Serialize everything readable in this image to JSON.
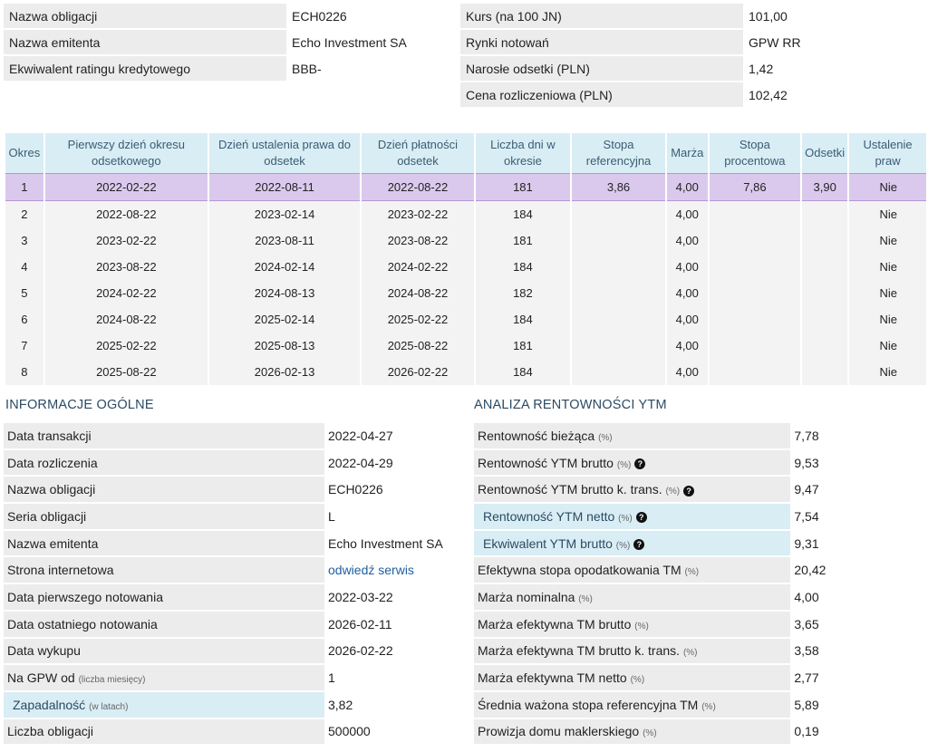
{
  "summary_left": [
    {
      "key": "Nazwa obligacji",
      "value": "ECH0226"
    },
    {
      "key": "Nazwa emitenta",
      "value": "Echo Investment SA"
    },
    {
      "key": "Ekwiwalent ratingu kredytowego",
      "value": "BBB-"
    }
  ],
  "summary_right": [
    {
      "key": "Kurs (na 100 JN)",
      "value": "101,00"
    },
    {
      "key": "Rynki notowań",
      "value": "GPW RR"
    },
    {
      "key": "Narosłe odsetki (PLN)",
      "value": "1,42"
    },
    {
      "key": "Cena rozliczeniowa (PLN)",
      "value": "102,42"
    }
  ],
  "periods": {
    "headers": [
      "Okres",
      "Pierwszy dzień okresu odsetkowego",
      "Dzień ustalenia prawa do odsetek",
      "Dzień płatności odsetek",
      "Liczba dni w okresie",
      "Stopa referencyjna",
      "Marża",
      "Stopa procentowa",
      "Odsetki",
      "Ustalenie praw"
    ],
    "rows": [
      [
        "1",
        "2022-02-22",
        "2022-08-11",
        "2022-08-22",
        "181",
        "3,86",
        "4,00",
        "7,86",
        "3,90",
        "Nie"
      ],
      [
        "2",
        "2022-08-22",
        "2023-02-14",
        "2023-02-22",
        "184",
        "",
        "4,00",
        "",
        "",
        "Nie"
      ],
      [
        "3",
        "2023-02-22",
        "2023-08-11",
        "2023-08-22",
        "181",
        "",
        "4,00",
        "",
        "",
        "Nie"
      ],
      [
        "4",
        "2023-08-22",
        "2024-02-14",
        "2024-02-22",
        "184",
        "",
        "4,00",
        "",
        "",
        "Nie"
      ],
      [
        "5",
        "2024-02-22",
        "2024-08-13",
        "2024-08-22",
        "182",
        "",
        "4,00",
        "",
        "",
        "Nie"
      ],
      [
        "6",
        "2024-08-22",
        "2025-02-14",
        "2025-02-22",
        "184",
        "",
        "4,00",
        "",
        "",
        "Nie"
      ],
      [
        "7",
        "2025-02-22",
        "2025-08-13",
        "2025-08-22",
        "181",
        "",
        "4,00",
        "",
        "",
        "Nie"
      ],
      [
        "8",
        "2025-08-22",
        "2026-02-13",
        "2026-02-22",
        "184",
        "",
        "4,00",
        "",
        "",
        "Nie"
      ]
    ]
  },
  "info": {
    "title": "INFORMACJE OGÓLNE",
    "rows": [
      {
        "key": "Data transakcji",
        "note": "",
        "value": "2022-04-27"
      },
      {
        "key": "Data rozliczenia",
        "note": "",
        "value": "2022-04-29"
      },
      {
        "key": "Nazwa obligacji",
        "note": "",
        "value": "ECH0226"
      },
      {
        "key": "Seria obligacji",
        "note": "",
        "value": "L"
      },
      {
        "key": "Nazwa emitenta",
        "note": "",
        "value": "Echo Investment SA"
      },
      {
        "key": "Strona internetowa",
        "note": "",
        "value": "odwiedź serwis",
        "link": true
      },
      {
        "key": "Data pierwszego notowania",
        "note": "",
        "value": "2022-03-22"
      },
      {
        "key": "Data ostatniego notowania",
        "note": "",
        "value": "2026-02-11"
      },
      {
        "key": "Data wykupu",
        "note": "",
        "value": "2026-02-22"
      },
      {
        "key": "Na GPW od",
        "note": "(liczba miesięcy)",
        "value": "1"
      },
      {
        "key": "Zapadalność",
        "note": "(w latach)",
        "value": "3,82",
        "accent": true
      },
      {
        "key": "Liczba obligacji",
        "note": "",
        "value": "500000"
      }
    ]
  },
  "ytm": {
    "title": "ANALIZA RENTOWNOŚCI YTM",
    "rows": [
      {
        "key": "Rentowność bieżąca",
        "note": "(%)",
        "value": "7,78"
      },
      {
        "key": "Rentowność YTM brutto",
        "note": "(%)",
        "value": "9,53",
        "help": true
      },
      {
        "key": "Rentowność YTM brutto k. trans.",
        "note": "(%)",
        "value": "9,47",
        "help": true
      },
      {
        "key": "Rentowność YTM netto",
        "note": "(%)",
        "value": "7,54",
        "help": true,
        "accent": true
      },
      {
        "key": "Ekwiwalent YTM brutto",
        "note": "(%)",
        "value": "9,31",
        "help": true,
        "accent": true
      },
      {
        "key": "Efektywna stopa opodatkowania TM",
        "note": "(%)",
        "value": "20,42"
      },
      {
        "key": "Marża nominalna",
        "note": "(%)",
        "value": "4,00"
      },
      {
        "key": "Marża efektywna TM brutto",
        "note": "(%)",
        "value": "3,65"
      },
      {
        "key": "Marża efektywna TM brutto k. trans.",
        "note": "(%)",
        "value": "3,58"
      },
      {
        "key": "Marża efektywna TM netto",
        "note": "(%)",
        "value": "2,77"
      },
      {
        "key": "Średnia ważona stopa referencyjna TM",
        "note": "(%)",
        "value": "5,89"
      },
      {
        "key": "Prowizja domu maklerskiego",
        "note": "(%)",
        "value": "0,19"
      }
    ]
  }
}
